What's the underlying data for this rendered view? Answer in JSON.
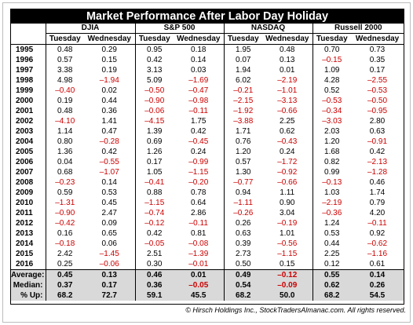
{
  "title": "Market Performance After Labor Day Holiday",
  "groups": [
    "DJIA",
    "S&P 500",
    "NASDAQ",
    "Russell 2000"
  ],
  "subheaders": [
    "Tuesday",
    "Wednesday"
  ],
  "rows": [
    {
      "year": "1995",
      "values": [
        "0.48",
        "0.29",
        "0.95",
        "0.18",
        "1.95",
        "0.48",
        "0.70",
        "0.73"
      ]
    },
    {
      "year": "1996",
      "values": [
        "0.57",
        "0.15",
        "0.42",
        "0.14",
        "0.07",
        "0.13",
        "–0.15",
        "0.35"
      ]
    },
    {
      "year": "1997",
      "values": [
        "3.38",
        "0.19",
        "3.13",
        "0.03",
        "1.94",
        "0.01",
        "1.09",
        "0.17"
      ]
    },
    {
      "year": "1998",
      "values": [
        "4.98",
        "–1.94",
        "5.09",
        "–1.69",
        "6.02",
        "–2.19",
        "4.28",
        "–2.55"
      ]
    },
    {
      "year": "1999",
      "values": [
        "–0.40",
        "0.02",
        "–0.50",
        "–0.47",
        "–0.21",
        "–1.01",
        "0.52",
        "–0.53"
      ]
    },
    {
      "year": "2000",
      "values": [
        "0.19",
        "0.44",
        "–0.90",
        "–0.98",
        "–2.15",
        "–3.13",
        "–0.53",
        "–0.50"
      ]
    },
    {
      "year": "2001",
      "values": [
        "0.48",
        "0.36",
        "–0.06",
        "–0.11",
        "–1.92",
        "–0.66",
        "–0.34",
        "–0.95"
      ]
    },
    {
      "year": "2002",
      "values": [
        "–4.10",
        "1.41",
        "–4.15",
        "1.75",
        "–3.88",
        "2.25",
        "–3.03",
        "2.80"
      ]
    },
    {
      "year": "2003",
      "values": [
        "1.14",
        "0.47",
        "1.39",
        "0.42",
        "1.71",
        "0.62",
        "2.03",
        "0.63"
      ]
    },
    {
      "year": "2004",
      "values": [
        "0.80",
        "–0.28",
        "0.69",
        "–0.45",
        "0.76",
        "–0.43",
        "1.20",
        "–0.91"
      ]
    },
    {
      "year": "2005",
      "values": [
        "1.36",
        "0.42",
        "1.26",
        "0.24",
        "1.20",
        "0.24",
        "1.68",
        "0.42"
      ]
    },
    {
      "year": "2006",
      "values": [
        "0.04",
        "–0.55",
        "0.17",
        "–0.99",
        "0.57",
        "–1.72",
        "0.82",
        "–2.13"
      ]
    },
    {
      "year": "2007",
      "values": [
        "0.68",
        "–1.07",
        "1.05",
        "–1.15",
        "1.30",
        "–0.92",
        "0.99",
        "–1.28"
      ]
    },
    {
      "year": "2008",
      "values": [
        "–0.23",
        "0.14",
        "–0.41",
        "–0.20",
        "–0.77",
        "–0.66",
        "–0.13",
        "0.46"
      ]
    },
    {
      "year": "2009",
      "values": [
        "0.59",
        "0.53",
        "0.88",
        "0.78",
        "0.94",
        "1.11",
        "1.03",
        "1.74"
      ]
    },
    {
      "year": "2010",
      "values": [
        "–1.31",
        "0.45",
        "–1.15",
        "0.64",
        "–1.11",
        "0.90",
        "–2.19",
        "0.79"
      ]
    },
    {
      "year": "2011",
      "values": [
        "–0.90",
        "2.47",
        "–0.74",
        "2.86",
        "–0.26",
        "3.04",
        "–0.36",
        "4.20"
      ]
    },
    {
      "year": "2012",
      "values": [
        "–0.42",
        "0.09",
        "–0.12",
        "–0.11",
        "0.26",
        "–0.19",
        "1.24",
        "–0.11"
      ]
    },
    {
      "year": "2013",
      "values": [
        "0.16",
        "0.65",
        "0.42",
        "0.81",
        "0.63",
        "1.01",
        "0.53",
        "0.92"
      ]
    },
    {
      "year": "2014",
      "values": [
        "–0.18",
        "0.06",
        "–0.05",
        "–0.08",
        "0.39",
        "–0.56",
        "0.44",
        "–0.62"
      ]
    },
    {
      "year": "2015",
      "values": [
        "2.42",
        "–1.45",
        "2.51",
        "–1.39",
        "2.73",
        "–1.15",
        "2.25",
        "–1.16"
      ]
    },
    {
      "year": "2016",
      "values": [
        "0.25",
        "–0.06",
        "0.30",
        "–0.01",
        "0.50",
        "0.15",
        "0.12",
        "0.61"
      ]
    }
  ],
  "summary": [
    {
      "label": "Average:",
      "values": [
        "0.45",
        "0.13",
        "0.46",
        "0.01",
        "0.49",
        "–0.12",
        "0.55",
        "0.14"
      ]
    },
    {
      "label": "Median:",
      "values": [
        "0.37",
        "0.17",
        "0.36",
        "–0.05",
        "0.54",
        "–0.09",
        "0.62",
        "0.26"
      ]
    },
    {
      "label": "% Up:",
      "values": [
        "68.2",
        "72.7",
        "59.1",
        "45.5",
        "68.2",
        "50.0",
        "68.2",
        "54.5"
      ]
    }
  ],
  "copyright": "© Hirsch Holdings Inc., StockTradersAlmanac.com. All rights reserved.",
  "colors": {
    "negative": "#cc0000",
    "header_bg": "#000000",
    "summary_bg": "#d9d9d9"
  }
}
